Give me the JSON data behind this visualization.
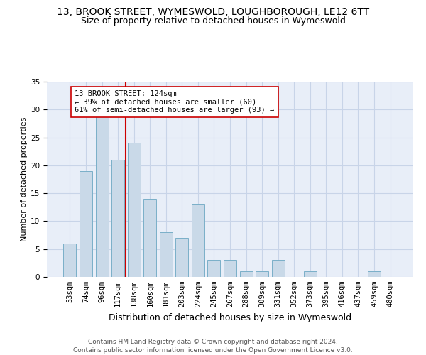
{
  "title_line1": "13, BROOK STREET, WYMESWOLD, LOUGHBOROUGH, LE12 6TT",
  "title_line2": "Size of property relative to detached houses in Wymeswold",
  "xlabel": "Distribution of detached houses by size in Wymeswold",
  "ylabel": "Number of detached properties",
  "categories": [
    "53sqm",
    "74sqm",
    "96sqm",
    "117sqm",
    "138sqm",
    "160sqm",
    "181sqm",
    "203sqm",
    "224sqm",
    "245sqm",
    "267sqm",
    "288sqm",
    "309sqm",
    "331sqm",
    "352sqm",
    "373sqm",
    "395sqm",
    "416sqm",
    "437sqm",
    "459sqm",
    "480sqm"
  ],
  "values": [
    6,
    19,
    29,
    21,
    24,
    14,
    8,
    7,
    13,
    3,
    3,
    1,
    1,
    3,
    0,
    1,
    0,
    0,
    0,
    1,
    0
  ],
  "bar_color": "#c9d9e8",
  "bar_edge_color": "#7aafc8",
  "grid_color": "#c8d4e8",
  "background_color": "#e8eef8",
  "vline_x": 3.5,
  "vline_color": "#cc0000",
  "annotation_text": "13 BROOK STREET: 124sqm\n← 39% of detached houses are smaller (60)\n61% of semi-detached houses are larger (93) →",
  "annotation_box_color": "#ffffff",
  "annotation_box_edge": "#cc0000",
  "ylim": [
    0,
    35
  ],
  "yticks": [
    0,
    5,
    10,
    15,
    20,
    25,
    30,
    35
  ],
  "footer_line1": "Contains HM Land Registry data © Crown copyright and database right 2024.",
  "footer_line2": "Contains public sector information licensed under the Open Government Licence v3.0.",
  "title_fontsize": 10,
  "subtitle_fontsize": 9,
  "ylabel_fontsize": 8,
  "xlabel_fontsize": 9,
  "tick_fontsize": 7.5,
  "annotation_fontsize": 7.5,
  "footer_fontsize": 6.5
}
